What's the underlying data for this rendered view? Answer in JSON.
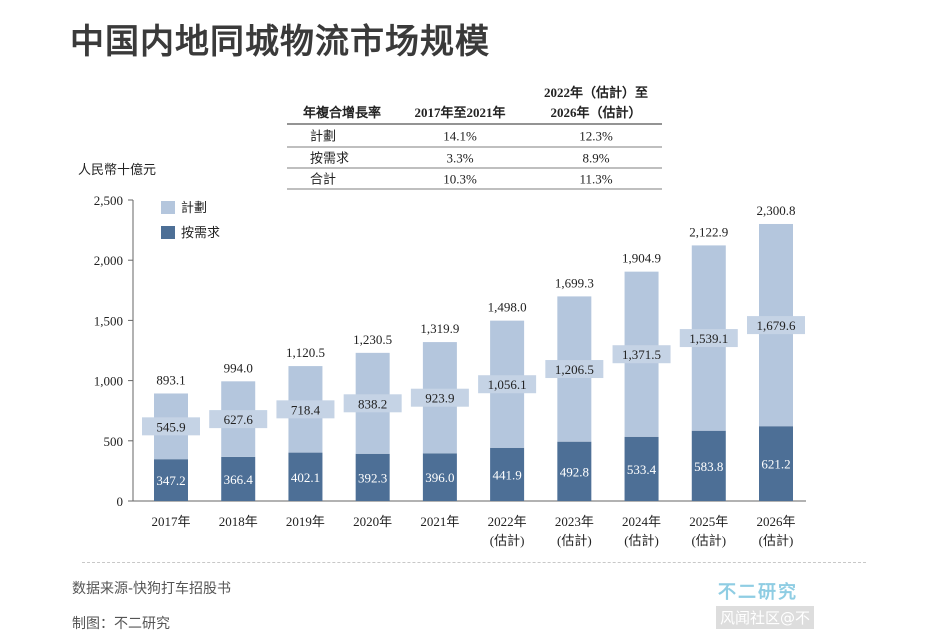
{
  "page": {
    "footer": {
      "source": "数据来源-快狗打车招股书",
      "credit": "制图：不二研究",
      "brand": "不二研究",
      "watermark_caption": "风闻社区@不"
    },
    "colors": {
      "plan": "#b4c6dd",
      "on_demand": "#4d6f96",
      "label_band": "#c5d3e5",
      "axis": "#666666",
      "text": "#222222"
    }
  },
  "chart_data": {
    "type": "bar",
    "stacked": true,
    "title": "中国内地同城物流市场规模",
    "ylabel": "人民幣十億元",
    "xlabel": "",
    "ylim": [
      0,
      2500
    ],
    "yticks": [
      0,
      500,
      1000,
      1500,
      2000,
      2500
    ],
    "ytick_labels": [
      "0",
      "500",
      "1,000",
      "1,500",
      "2,000",
      "2,500"
    ],
    "grid": false,
    "legend_position": "top-left",
    "categories": [
      [
        "2017年"
      ],
      [
        "2018年"
      ],
      [
        "2019年"
      ],
      [
        "2020年"
      ],
      [
        "2021年"
      ],
      [
        "2022年",
        "(估計)"
      ],
      [
        "2023年",
        "(估計)"
      ],
      [
        "2024年",
        "(估計)"
      ],
      [
        "2025年",
        "(估計)"
      ],
      [
        "2026年",
        "(估計)"
      ]
    ],
    "series": [
      {
        "name": "按需求",
        "values": [
          347.2,
          366.4,
          402.1,
          392.3,
          396.0,
          441.9,
          492.8,
          533.4,
          583.8,
          621.2
        ],
        "labels": [
          "347.2",
          "366.4",
          "402.1",
          "392.3",
          "396.0",
          "441.9",
          "492.8",
          "533.4",
          "583.8",
          "621.2"
        ]
      },
      {
        "name": "計劃",
        "values": [
          545.9,
          627.6,
          718.4,
          838.2,
          923.9,
          1056.1,
          1206.5,
          1371.5,
          1539.1,
          1679.6
        ],
        "labels": [
          "545.9",
          "627.6",
          "718.4",
          "838.2",
          "923.9",
          "1,056.1",
          "1,206.5",
          "1,371.5",
          "1,539.1",
          "1,679.6"
        ]
      }
    ],
    "totals": [
      893.1,
      994.0,
      1120.5,
      1230.5,
      1319.9,
      1498.0,
      1699.3,
      1904.9,
      2122.9,
      2300.8
    ],
    "total_labels": [
      "893.1",
      "994.0",
      "1,120.5",
      "1,230.5",
      "1,319.9",
      "1,498.0",
      "1,699.3",
      "1,904.9",
      "2,122.9",
      "2,300.8"
    ],
    "legend": [
      {
        "name": "計劃",
        "series": "plan"
      },
      {
        "name": "按需求",
        "series": "on_demand"
      }
    ],
    "cagr_table": {
      "headers": [
        "年複合增長率",
        "2017年至2021年",
        [
          "2022年（估計）至",
          "2026年（估計）"
        ]
      ],
      "rows": [
        [
          "計劃",
          "14.1%",
          "12.3%"
        ],
        [
          "按需求",
          "3.3%",
          "8.9%"
        ],
        [
          "合計",
          "10.3%",
          "11.3%"
        ]
      ]
    }
  }
}
